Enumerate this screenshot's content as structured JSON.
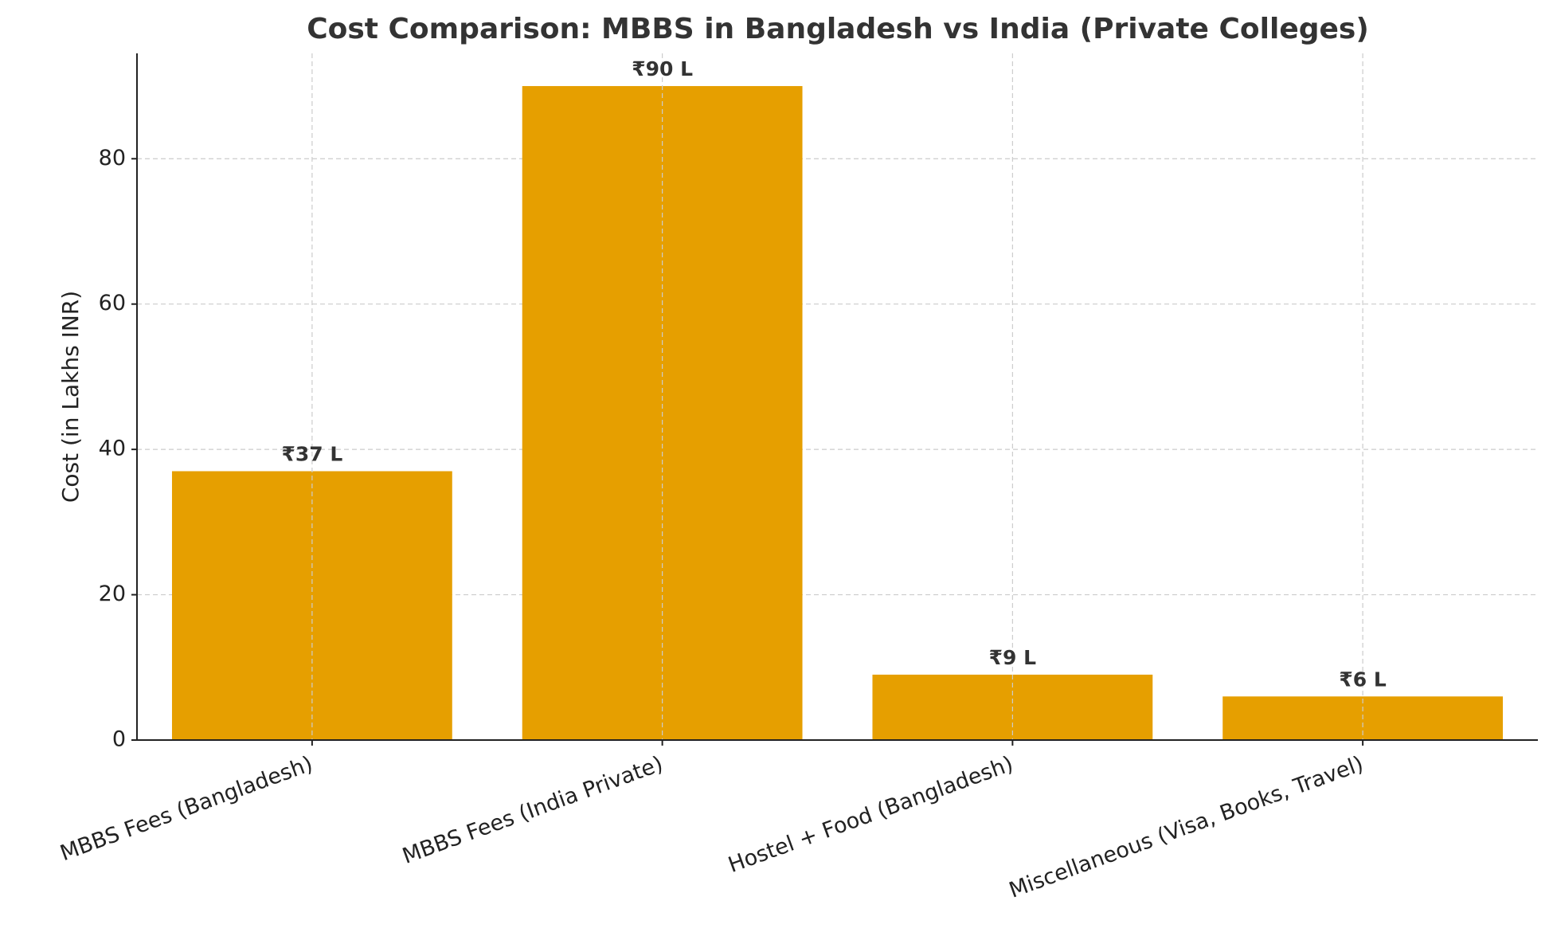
{
  "chart_data": {
    "type": "bar",
    "title": "Cost Comparison: MBBS in Bangladesh vs India (Private Colleges)",
    "y_label": "Cost (in Lakhs INR)",
    "categories": [
      "MBBS Fees (Bangladesh)",
      "MBBS Fees (India Private)",
      "Hostel + Food (Bangladesh)",
      "Miscellaneous (Visa, Books, Travel)"
    ],
    "values": [
      37,
      90,
      9,
      6
    ],
    "value_labels": [
      "₹37 L",
      "₹90 L",
      "₹9 L",
      "₹6 L"
    ],
    "color": "#e69f00",
    "ylim": [
      0,
      94.5
    ],
    "yticks": [
      0,
      20,
      40,
      60,
      80
    ],
    "grid": true
  }
}
